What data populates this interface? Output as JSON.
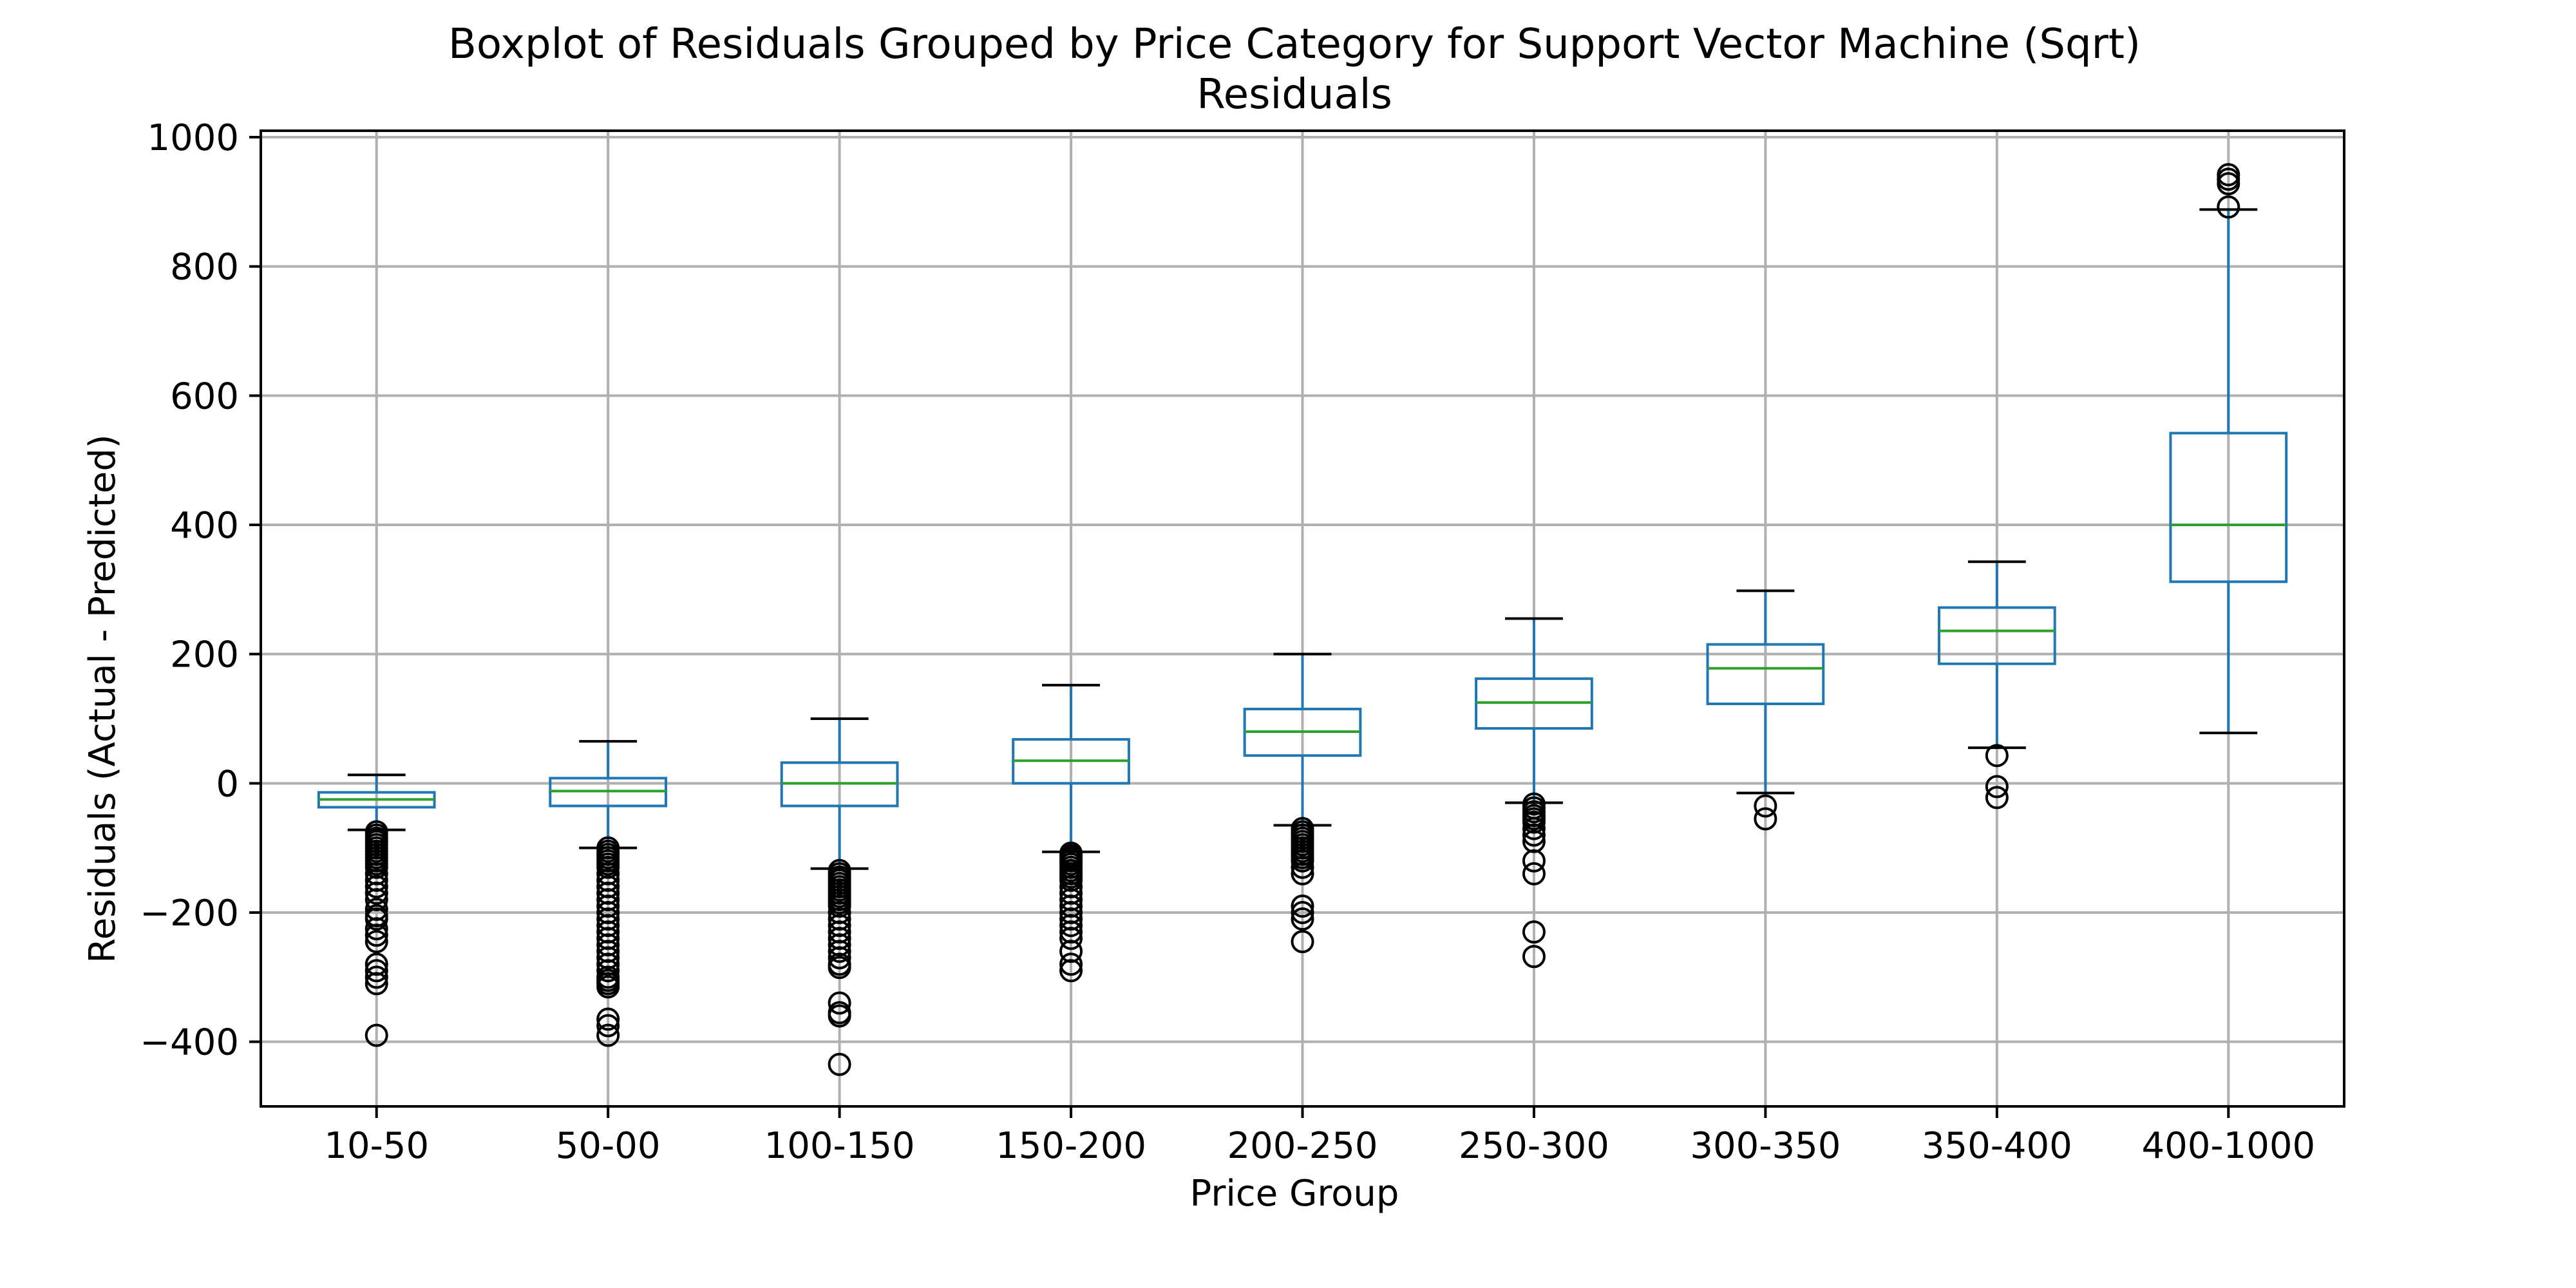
{
  "chart_data": {
    "type": "boxplot",
    "title": "Boxplot of Residuals Grouped by Price Category for Support Vector Machine (Sqrt)",
    "subtitle": "Residuals",
    "xlabel": "Price Group",
    "ylabel": "Residuals (Actual - Predicted)",
    "ylim": [
      -500,
      1010
    ],
    "yticks": [
      -400,
      -200,
      0,
      200,
      400,
      600,
      800,
      1000
    ],
    "ytick_labels": [
      "−400",
      "−200",
      "0",
      "200",
      "400",
      "600",
      "800",
      "1000"
    ],
    "grid": true,
    "categories": [
      "10-50",
      "50-00",
      "100-150",
      "150-200",
      "200-250",
      "250-300",
      "300-350",
      "350-400",
      "400-1000"
    ],
    "boxes": [
      {
        "whisker_low": -72,
        "q1": -37,
        "median": -25,
        "q3": -14,
        "whisker_high": 13,
        "outliers": [
          -75,
          -80,
          -85,
          -90,
          -95,
          -100,
          -105,
          -110,
          -115,
          -120,
          -125,
          -130,
          -140,
          -150,
          -160,
          -170,
          -180,
          -195,
          -205,
          -210,
          -225,
          -235,
          -245,
          -280,
          -290,
          -300,
          -310,
          -390
        ]
      },
      {
        "whisker_low": -100,
        "q1": -35,
        "median": -12,
        "q3": 8,
        "whisker_high": 65,
        "outliers": [
          -100,
          -105,
          -110,
          -115,
          -120,
          -125,
          -130,
          -140,
          -150,
          -160,
          -170,
          -180,
          -190,
          -200,
          -210,
          -220,
          -230,
          -240,
          -250,
          -260,
          -270,
          -280,
          -290,
          -300,
          -305,
          -310,
          -315,
          -365,
          -375,
          -390
        ]
      },
      {
        "whisker_low": -132,
        "q1": -35,
        "median": 0,
        "q3": 32,
        "whisker_high": 100,
        "outliers": [
          -135,
          -140,
          -145,
          -150,
          -155,
          -160,
          -165,
          -170,
          -175,
          -180,
          -185,
          -190,
          -200,
          -210,
          -220,
          -230,
          -240,
          -250,
          -260,
          -270,
          -280,
          -285,
          -340,
          -355,
          -360,
          -435
        ]
      },
      {
        "whisker_low": -106,
        "q1": 0,
        "median": 35,
        "q3": 68,
        "whisker_high": 152,
        "outliers": [
          -108,
          -112,
          -116,
          -120,
          -125,
          -130,
          -135,
          -140,
          -145,
          -150,
          -160,
          -170,
          -180,
          -190,
          -200,
          -210,
          -220,
          -230,
          -240,
          -260,
          -280,
          -290
        ]
      },
      {
        "whisker_low": -65,
        "q1": 43,
        "median": 80,
        "q3": 115,
        "whisker_high": 200,
        "outliers": [
          -70,
          -75,
          -80,
          -85,
          -90,
          -95,
          -100,
          -105,
          -110,
          -115,
          -120,
          -130,
          -140,
          -190,
          -200,
          -210,
          -245
        ]
      },
      {
        "whisker_low": -30,
        "q1": 85,
        "median": 125,
        "q3": 162,
        "whisker_high": 255,
        "outliers": [
          -32,
          -38,
          -44,
          -50,
          -55,
          -60,
          -70,
          -80,
          -90,
          -120,
          -140,
          -230,
          -268
        ]
      },
      {
        "whisker_low": -15,
        "q1": 123,
        "median": 178,
        "q3": 215,
        "whisker_high": 298,
        "outliers": [
          -35,
          -55
        ]
      },
      {
        "whisker_low": 55,
        "q1": 185,
        "median": 236,
        "q3": 272,
        "whisker_high": 343,
        "outliers": [
          43,
          -5,
          -22
        ]
      },
      {
        "whisker_low": 78,
        "q1": 312,
        "median": 400,
        "q3": 542,
        "whisker_high": 888,
        "outliers": [
          892,
          928,
          935,
          942
        ]
      }
    ],
    "colors": {
      "box": "#1f77b4",
      "median": "#2ca02c",
      "cap": "#000000",
      "outlier": "#000000",
      "grid": "#b0b0b0",
      "axes": "#000000"
    }
  }
}
